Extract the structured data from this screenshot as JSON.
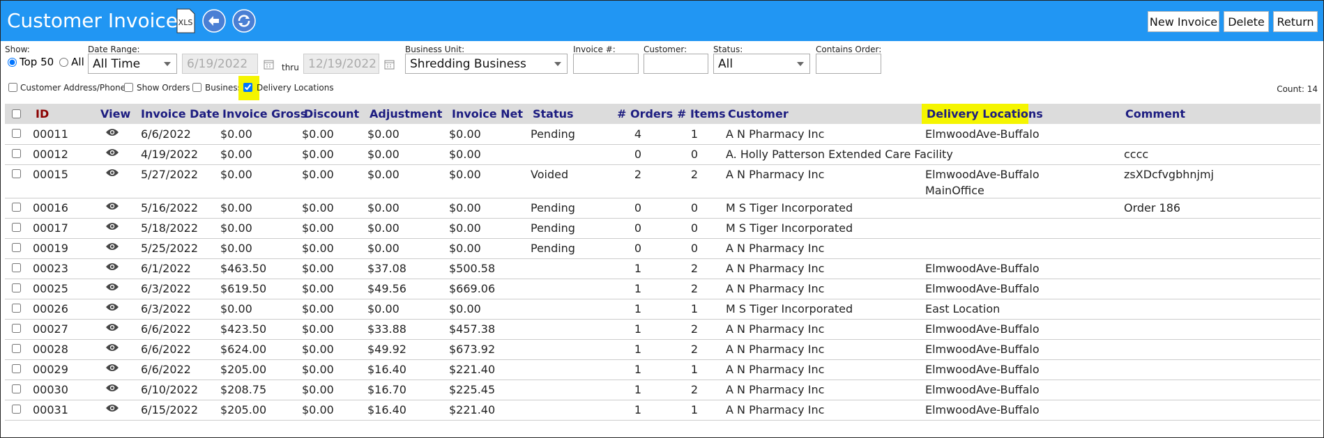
{
  "header": {
    "title": "Customer Invoices",
    "export_label": "XLS",
    "buttons": [
      "New Invoice",
      "Delete",
      "Return"
    ]
  },
  "filters": {
    "show": {
      "label": "Show:",
      "options": [
        "Top 50",
        "All"
      ],
      "selected": 0
    },
    "date_range": {
      "label": "Date Range:",
      "value": "All Time",
      "from": "6/19/2022",
      "thru": "thru",
      "to": "12/19/2022"
    },
    "business_unit": {
      "label": "Business Unit:",
      "value": "Shredding Business"
    },
    "invoice_number": {
      "label": "Invoice #:"
    },
    "customer": {
      "label": "Customer:"
    },
    "status": {
      "label": "Status:",
      "value": "All"
    },
    "contains_order": {
      "label": "Contains Order:"
    }
  },
  "options": [
    {
      "label": "Customer Address/Phone",
      "checked": false
    },
    {
      "label": "Show Orders",
      "checked": false
    },
    {
      "label": "Business",
      "checked": false
    },
    {
      "label": "Delivery Locations",
      "checked": true
    }
  ],
  "count": {
    "label": "Count:",
    "value": 14
  },
  "table": {
    "columns": [
      "ID",
      "View",
      "Invoice Date",
      "Invoice Gross",
      "Discount",
      "Adjustment",
      "Invoice Net",
      "Status",
      "# Orders",
      "# Items",
      "Customer",
      "Delivery Locations",
      "Comment"
    ],
    "rows": [
      {
        "id": "00011",
        "date": "6/6/2022",
        "gross": "$0.00",
        "discount": "$0.00",
        "adjustment": "$0.00",
        "net": "$0.00",
        "status": "Pending",
        "orders": 4,
        "items": 1,
        "customer": "A N Pharmacy Inc",
        "delivery": [
          "ElmwoodAve-Buffalo"
        ]
      },
      {
        "id": "00012",
        "date": "4/19/2022",
        "gross": "$0.00",
        "discount": "$0.00",
        "adjustment": "$0.00",
        "net": "$0.00",
        "orders": 0,
        "items": 0,
        "customer": "A. Holly Patterson Extended Care Facility",
        "comment": "cccc"
      },
      {
        "id": "00015",
        "date": "5/27/2022",
        "gross": "$0.00",
        "discount": "$0.00",
        "adjustment": "$0.00",
        "net": "$0.00",
        "status": "Voided",
        "orders": 2,
        "items": 2,
        "customer": "A N Pharmacy Inc",
        "delivery": [
          "ElmwoodAve-Buffalo",
          "MainOffice"
        ],
        "comment": "zsXDcfvgbhnjmj"
      },
      {
        "id": "00016",
        "date": "5/16/2022",
        "gross": "$0.00",
        "discount": "$0.00",
        "adjustment": "$0.00",
        "net": "$0.00",
        "status": "Pending",
        "orders": 0,
        "items": 0,
        "customer": "M S Tiger Incorporated",
        "comment": "Order 186"
      },
      {
        "id": "00017",
        "date": "5/18/2022",
        "gross": "$0.00",
        "discount": "$0.00",
        "adjustment": "$0.00",
        "net": "$0.00",
        "status": "Pending",
        "orders": 0,
        "items": 0,
        "customer": "M S Tiger Incorporated"
      },
      {
        "id": "00019",
        "date": "5/25/2022",
        "gross": "$0.00",
        "discount": "$0.00",
        "adjustment": "$0.00",
        "net": "$0.00",
        "status": "Pending",
        "orders": 0,
        "items": 0,
        "customer": "A N Pharmacy Inc"
      },
      {
        "id": "00023",
        "date": "6/1/2022",
        "gross": "$463.50",
        "discount": "$0.00",
        "adjustment": "$37.08",
        "net": "$500.58",
        "orders": 1,
        "items": 2,
        "customer": "A N Pharmacy Inc",
        "delivery": [
          "ElmwoodAve-Buffalo"
        ]
      },
      {
        "id": "00025",
        "date": "6/3/2022",
        "gross": "$619.50",
        "discount": "$0.00",
        "adjustment": "$49.56",
        "net": "$669.06",
        "orders": 1,
        "items": 2,
        "customer": "A N Pharmacy Inc",
        "delivery": [
          "ElmwoodAve-Buffalo"
        ]
      },
      {
        "id": "00026",
        "date": "6/3/2022",
        "gross": "$0.00",
        "discount": "$0.00",
        "adjustment": "$0.00",
        "net": "$0.00",
        "orders": 1,
        "items": 1,
        "customer": "M S Tiger Incorporated",
        "delivery": [
          "East Location"
        ]
      },
      {
        "id": "00027",
        "date": "6/6/2022",
        "gross": "$423.50",
        "discount": "$0.00",
        "adjustment": "$33.88",
        "net": "$457.38",
        "orders": 1,
        "items": 2,
        "customer": "A N Pharmacy Inc",
        "delivery": [
          "ElmwoodAve-Buffalo"
        ]
      },
      {
        "id": "00028",
        "date": "6/6/2022",
        "gross": "$624.00",
        "discount": "$0.00",
        "adjustment": "$49.92",
        "net": "$673.92",
        "orders": 1,
        "items": 2,
        "customer": "A N Pharmacy Inc",
        "delivery": [
          "ElmwoodAve-Buffalo"
        ]
      },
      {
        "id": "00029",
        "date": "6/6/2022",
        "gross": "$205.00",
        "discount": "$0.00",
        "adjustment": "$16.40",
        "net": "$221.40",
        "orders": 1,
        "items": 1,
        "customer": "A N Pharmacy Inc",
        "delivery": [
          "ElmwoodAve-Buffalo"
        ]
      },
      {
        "id": "00030",
        "date": "6/10/2022",
        "gross": "$208.75",
        "discount": "$0.00",
        "adjustment": "$16.70",
        "net": "$225.45",
        "orders": 1,
        "items": 2,
        "customer": "A N Pharmacy Inc",
        "delivery": [
          "ElmwoodAve-Buffalo"
        ]
      },
      {
        "id": "00031",
        "date": "6/15/2022",
        "gross": "$205.00",
        "discount": "$0.00",
        "adjustment": "$16.40",
        "net": "$221.40",
        "orders": 1,
        "items": 1,
        "customer": "A N Pharmacy Inc",
        "delivery": [
          "ElmwoodAve-Buffalo"
        ]
      }
    ]
  }
}
